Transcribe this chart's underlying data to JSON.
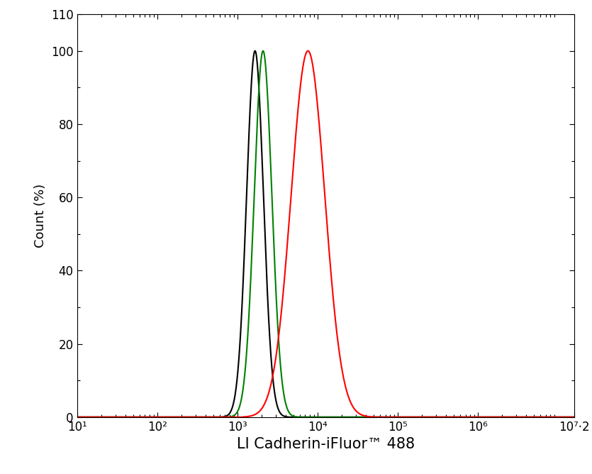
{
  "xlabel": "LI Cadherin-iFluor™ 488",
  "ylabel": "Count (%)",
  "xlim_log": [
    1,
    7.2
  ],
  "ylim": [
    0,
    110
  ],
  "yticks": [
    0,
    20,
    40,
    60,
    80,
    100,
    110
  ],
  "ytick_labels": [
    "0",
    "20",
    "40",
    "60",
    "80",
    "100",
    "110"
  ],
  "xtick_positions": [
    1,
    2,
    3,
    4,
    5,
    6
  ],
  "xtick_labels": [
    "10¹",
    "10²",
    "10³",
    "10⁴",
    "10⁵",
    "10⁶"
  ],
  "xtick_end_pos": 7.2,
  "xtick_end_label": "10⁷·2",
  "black_peak_log": 3.22,
  "black_sigma_log": 0.105,
  "green_peak_log": 3.32,
  "green_sigma_log": 0.11,
  "red_peak_log": 3.88,
  "red_sigma_log": 0.21,
  "black_color": "#000000",
  "green_color": "#008000",
  "red_color": "#ff0000",
  "line_width": 1.5,
  "xlabel_fontsize": 15,
  "ylabel_fontsize": 13,
  "tick_fontsize": 12,
  "background_color": "#ffffff"
}
